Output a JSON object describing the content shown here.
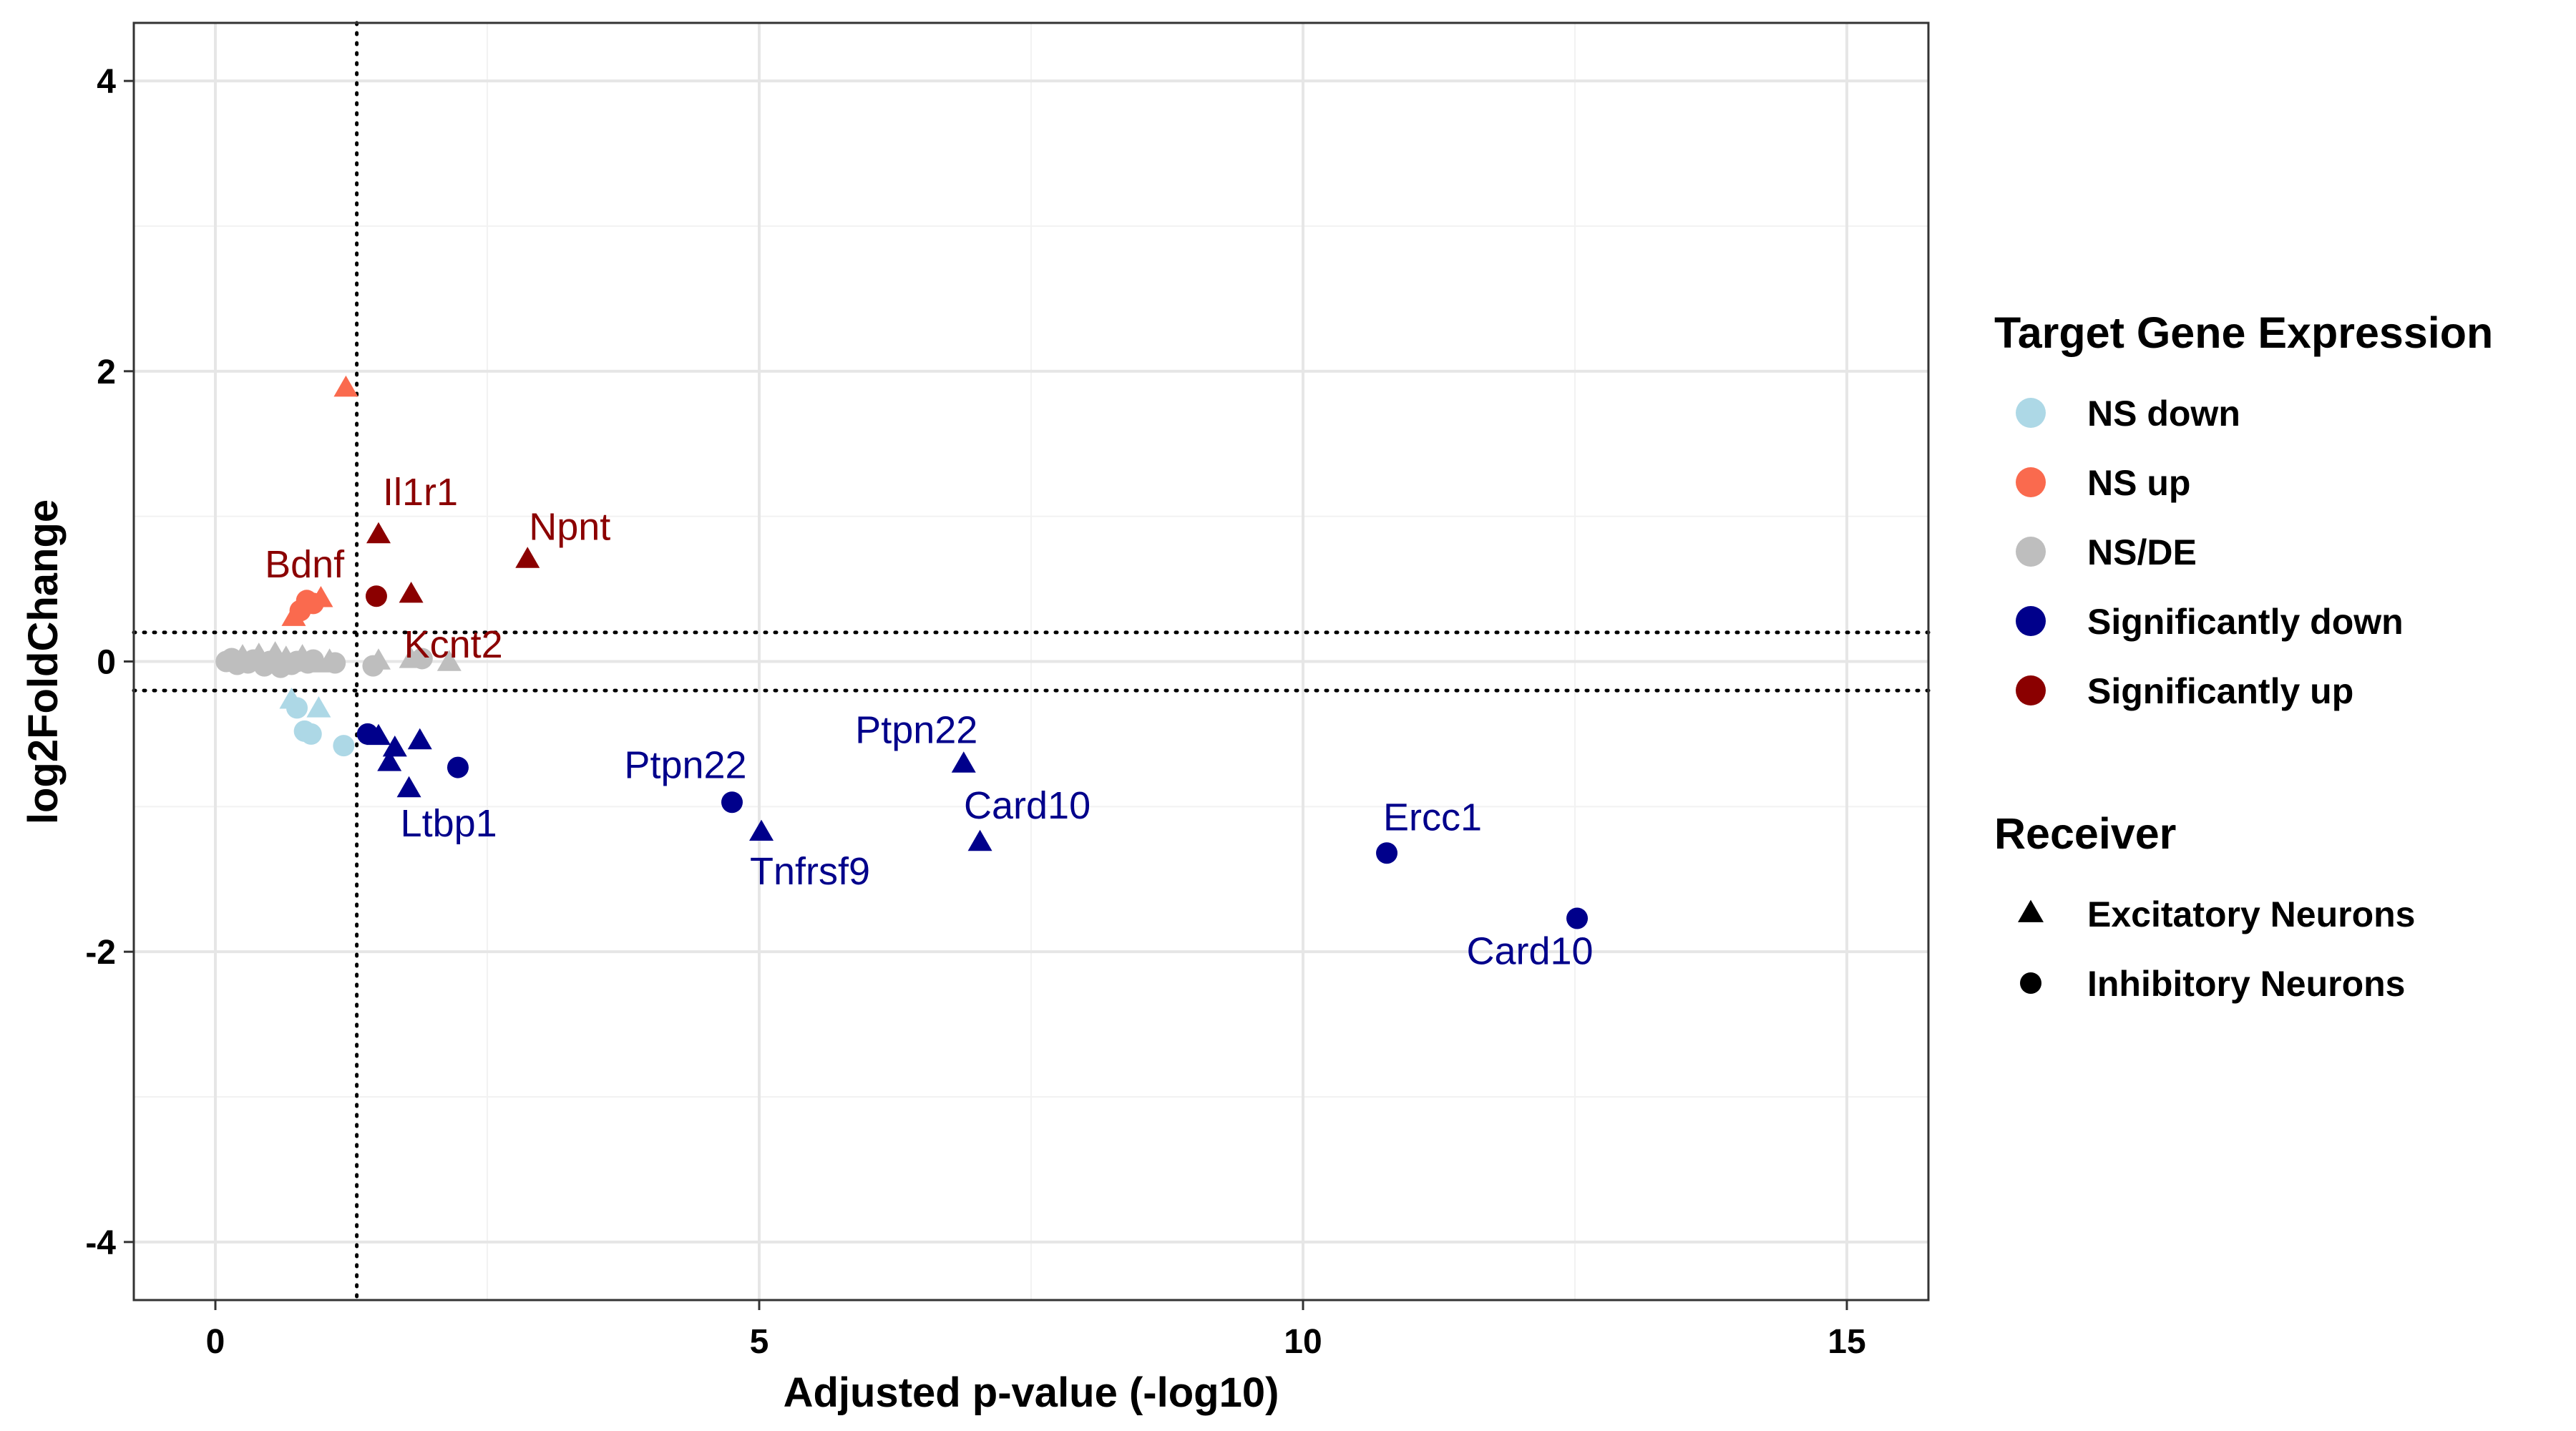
{
  "chart_data": {
    "type": "scatter",
    "xlabel": "Adjusted p-value (-log10)",
    "ylabel": "log2FoldChange",
    "xlim": [
      -0.75,
      15.75
    ],
    "ylim": [
      -4.4,
      4.4
    ],
    "x_ticks": [
      0,
      5,
      10,
      15
    ],
    "y_ticks": [
      -4,
      -2,
      0,
      2,
      4
    ],
    "grid": true,
    "legend_placement": "right",
    "reference_lines": {
      "vline_x": 1.3,
      "hline_y": [
        0.2,
        -0.2
      ],
      "style": "dotted"
    },
    "color_legend": {
      "title": "Target Gene Expression",
      "entries": [
        {
          "key": "ns_down",
          "label": "NS down",
          "color": "#add8e6"
        },
        {
          "key": "ns_up",
          "label": "NS up",
          "color": "#fa6a4e"
        },
        {
          "key": "ns_de",
          "label": "NS/DE",
          "color": "#bebebe"
        },
        {
          "key": "sig_down",
          "label": "Significantly down",
          "color": "#00008b"
        },
        {
          "key": "sig_up",
          "label": "Significantly up",
          "color": "#8b0000"
        }
      ]
    },
    "shape_legend": {
      "title": "Receiver",
      "entries": [
        {
          "key": "excitatory",
          "label": "Excitatory Neurons",
          "shape": "triangle"
        },
        {
          "key": "inhibitory",
          "label": "Inhibitory Neurons",
          "shape": "circle"
        }
      ]
    },
    "points": [
      {
        "x": 0.1,
        "y": 0.0,
        "cls": "ns_de",
        "shape": "circle"
      },
      {
        "x": 0.15,
        "y": 0.02,
        "cls": "ns_de",
        "shape": "circle"
      },
      {
        "x": 0.2,
        "y": -0.02,
        "cls": "ns_de",
        "shape": "circle"
      },
      {
        "x": 0.25,
        "y": 0.03,
        "cls": "ns_de",
        "shape": "triangle"
      },
      {
        "x": 0.3,
        "y": -0.01,
        "cls": "ns_de",
        "shape": "circle"
      },
      {
        "x": 0.35,
        "y": 0.01,
        "cls": "ns_de",
        "shape": "circle"
      },
      {
        "x": 0.4,
        "y": 0.04,
        "cls": "ns_de",
        "shape": "triangle"
      },
      {
        "x": 0.45,
        "y": -0.03,
        "cls": "ns_de",
        "shape": "circle"
      },
      {
        "x": 0.5,
        "y": 0.0,
        "cls": "ns_de",
        "shape": "circle"
      },
      {
        "x": 0.55,
        "y": 0.05,
        "cls": "ns_de",
        "shape": "triangle"
      },
      {
        "x": 0.6,
        "y": -0.04,
        "cls": "ns_de",
        "shape": "circle"
      },
      {
        "x": 0.65,
        "y": 0.02,
        "cls": "ns_de",
        "shape": "triangle"
      },
      {
        "x": 0.7,
        "y": -0.02,
        "cls": "ns_de",
        "shape": "circle"
      },
      {
        "x": 0.75,
        "y": 0.0,
        "cls": "ns_de",
        "shape": "circle"
      },
      {
        "x": 0.8,
        "y": 0.03,
        "cls": "ns_de",
        "shape": "triangle"
      },
      {
        "x": 0.85,
        "y": -0.01,
        "cls": "ns_de",
        "shape": "circle"
      },
      {
        "x": 0.9,
        "y": 0.01,
        "cls": "ns_de",
        "shape": "circle"
      },
      {
        "x": 0.95,
        "y": -0.02,
        "cls": "ns_de",
        "shape": "triangle"
      },
      {
        "x": 1.05,
        "y": 0.0,
        "cls": "ns_de",
        "shape": "triangle"
      },
      {
        "x": 1.1,
        "y": -0.01,
        "cls": "ns_de",
        "shape": "circle"
      },
      {
        "x": 1.45,
        "y": -0.03,
        "cls": "ns_de",
        "shape": "circle"
      },
      {
        "x": 1.5,
        "y": 0.0,
        "cls": "ns_de",
        "shape": "triangle"
      },
      {
        "x": 1.8,
        "y": 0.01,
        "cls": "ns_de",
        "shape": "triangle"
      },
      {
        "x": 1.9,
        "y": 0.02,
        "cls": "ns_de",
        "shape": "circle"
      },
      {
        "x": 2.15,
        "y": -0.01,
        "cls": "ns_de",
        "shape": "triangle"
      },
      {
        "x": 0.72,
        "y": 0.3,
        "cls": "ns_up",
        "shape": "triangle"
      },
      {
        "x": 0.78,
        "y": 0.35,
        "cls": "ns_up",
        "shape": "circle"
      },
      {
        "x": 0.84,
        "y": 0.42,
        "cls": "ns_up",
        "shape": "circle"
      },
      {
        "x": 0.9,
        "y": 0.4,
        "cls": "ns_up",
        "shape": "circle"
      },
      {
        "x": 0.97,
        "y": 0.43,
        "cls": "ns_up",
        "shape": "triangle"
      },
      {
        "x": 1.2,
        "y": 1.88,
        "cls": "ns_up",
        "shape": "triangle"
      },
      {
        "x": 0.7,
        "y": -0.27,
        "cls": "ns_down",
        "shape": "triangle"
      },
      {
        "x": 0.75,
        "y": -0.32,
        "cls": "ns_down",
        "shape": "circle"
      },
      {
        "x": 0.82,
        "y": -0.48,
        "cls": "ns_down",
        "shape": "circle"
      },
      {
        "x": 0.88,
        "y": -0.5,
        "cls": "ns_down",
        "shape": "circle"
      },
      {
        "x": 0.95,
        "y": -0.33,
        "cls": "ns_down",
        "shape": "triangle"
      },
      {
        "x": 1.18,
        "y": -0.58,
        "cls": "ns_down",
        "shape": "circle"
      },
      {
        "x": 1.5,
        "y": 0.87,
        "cls": "sig_up",
        "shape": "triangle",
        "label": "Il1r1",
        "dx": 6,
        "dy": -42,
        "anchor": "start"
      },
      {
        "x": 1.48,
        "y": 0.45,
        "cls": "sig_up",
        "shape": "circle"
      },
      {
        "x": 1.8,
        "y": 0.46,
        "cls": "sig_up",
        "shape": "triangle",
        "label": "Kcnt2",
        "dx": -10,
        "dy": 88,
        "anchor": "start"
      },
      {
        "x": 2.87,
        "y": 0.7,
        "cls": "sig_up",
        "shape": "triangle",
        "label": "Npnt",
        "dx": 2,
        "dy": -28,
        "anchor": "start"
      },
      {
        "x": 0.82,
        "y": 0.46,
        "cls": "sig_up_label_only",
        "shape": "none",
        "label": "Bdnf",
        "label_color": "#8b0000",
        "dx": 0,
        "dy": -24,
        "anchor": "middle"
      },
      {
        "x": 1.4,
        "y": -0.5,
        "cls": "sig_down",
        "shape": "circle"
      },
      {
        "x": 1.5,
        "y": -0.52,
        "cls": "sig_down",
        "shape": "triangle"
      },
      {
        "x": 1.6,
        "y": -0.7,
        "cls": "sig_down",
        "shape": "triangle"
      },
      {
        "x": 1.65,
        "y": -0.6,
        "cls": "sig_down",
        "shape": "triangle"
      },
      {
        "x": 1.78,
        "y": -0.88,
        "cls": "sig_down",
        "shape": "triangle",
        "label": "Ltbp1",
        "dx": -12,
        "dy": 66,
        "anchor": "start"
      },
      {
        "x": 1.88,
        "y": -0.55,
        "cls": "sig_down",
        "shape": "triangle"
      },
      {
        "x": 2.23,
        "y": -0.73,
        "cls": "sig_down",
        "shape": "circle"
      },
      {
        "x": 4.75,
        "y": -0.97,
        "cls": "sig_down",
        "shape": "circle",
        "label": "Ptpn22",
        "dx": -65,
        "dy": -34,
        "anchor": "middle"
      },
      {
        "x": 5.02,
        "y": -1.18,
        "cls": "sig_down",
        "shape": "triangle",
        "label": "Tnfrsf9",
        "dx": 68,
        "dy": 72,
        "anchor": "middle"
      },
      {
        "x": 6.88,
        "y": -0.71,
        "cls": "sig_down",
        "shape": "triangle",
        "label": "Ptpn22",
        "dx": -66,
        "dy": -30,
        "anchor": "middle"
      },
      {
        "x": 7.03,
        "y": -1.25,
        "cls": "sig_down",
        "shape": "triangle",
        "label": "Card10",
        "dx": 66,
        "dy": -34,
        "anchor": "middle"
      },
      {
        "x": 10.77,
        "y": -1.32,
        "cls": "sig_down",
        "shape": "circle",
        "label": "Ercc1",
        "dx": 64,
        "dy": -32,
        "anchor": "middle"
      },
      {
        "x": 12.52,
        "y": -1.77,
        "cls": "sig_down",
        "shape": "circle",
        "label": "Card10",
        "dx": -66,
        "dy": 64,
        "anchor": "middle"
      }
    ]
  }
}
